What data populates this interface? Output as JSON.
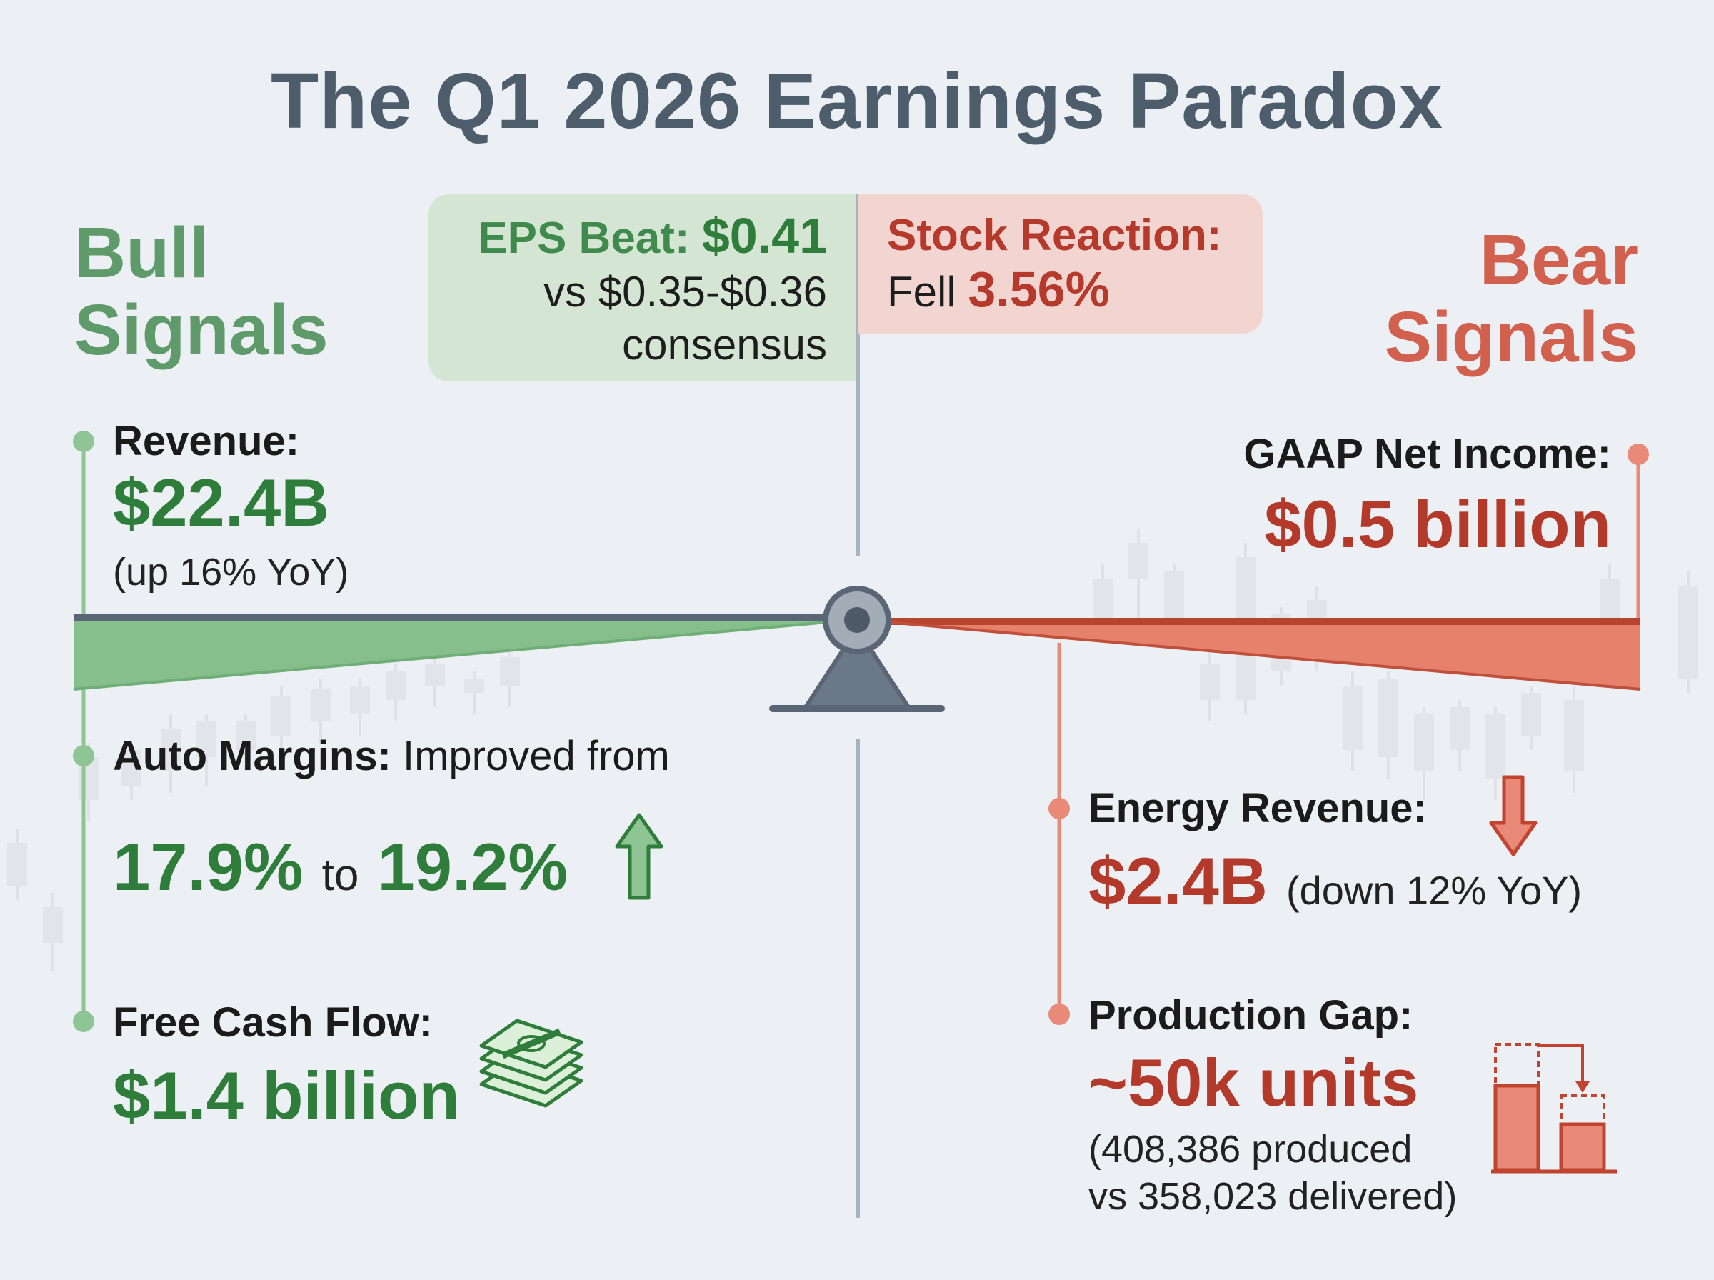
{
  "title": "The Q1 2026 Earnings Paradox",
  "bull": {
    "heading_line1": "Bull",
    "heading_line2": "Signals",
    "revenue": {
      "label": "Revenue:",
      "value": "$22.4B",
      "note": "(up 16% YoY)"
    },
    "auto_margins": {
      "label": "Auto Margins:",
      "text": "Improved from",
      "from": "17.9%",
      "to_word": "to",
      "to": "19.2%"
    },
    "free_cash_flow": {
      "label": "Free Cash Flow:",
      "value": "$1.4 billion"
    }
  },
  "eps": {
    "label": "EPS Beat:",
    "value": "$0.41",
    "line2": "vs $0.35-$0.36",
    "line3": "consensus"
  },
  "stock": {
    "label": "Stock Reaction:",
    "prefix": "Fell",
    "value": "3.56%"
  },
  "bear": {
    "heading_line1": "Bear",
    "heading_line2": "Signals",
    "net_income": {
      "label": "GAAP Net Income:",
      "value": "$0.5 billion"
    },
    "energy": {
      "label": "Energy Revenue:",
      "value": "$2.4B",
      "note": "(down 12% YoY)"
    },
    "production": {
      "label": "Production Gap:",
      "value": "~50k units",
      "note_line1": "(408,386 produced",
      "note_line2": "vs 358,023 delivered)"
    }
  },
  "colors": {
    "bull": "#2f7d3b",
    "bull_light": "#8fc495",
    "bear": "#b33a2a",
    "bear_light": "#e88a77",
    "neutral": "#6b7887"
  },
  "icons": [
    "arrow-up-icon",
    "cash-stack-icon",
    "arrow-down-icon",
    "production-bars-icon",
    "balance-pivot-icon"
  ]
}
